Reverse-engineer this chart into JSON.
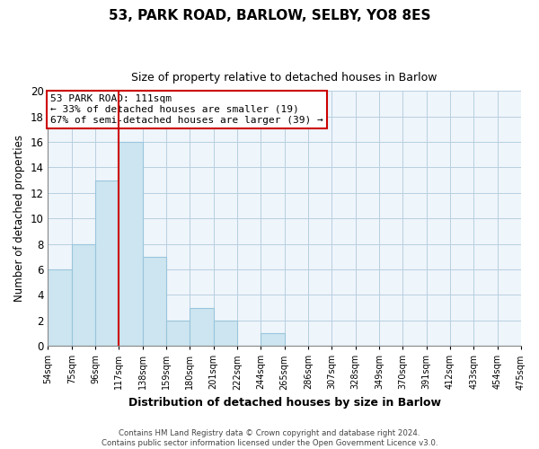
{
  "title": "53, PARK ROAD, BARLOW, SELBY, YO8 8ES",
  "subtitle": "Size of property relative to detached houses in Barlow",
  "xlabel": "Distribution of detached houses by size in Barlow",
  "ylabel": "Number of detached properties",
  "bin_labels": [
    "54sqm",
    "75sqm",
    "96sqm",
    "117sqm",
    "138sqm",
    "159sqm",
    "180sqm",
    "201sqm",
    "222sqm",
    "244sqm",
    "265sqm",
    "286sqm",
    "307sqm",
    "328sqm",
    "349sqm",
    "370sqm",
    "391sqm",
    "412sqm",
    "433sqm",
    "454sqm",
    "475sqm"
  ],
  "bar_values": [
    6,
    8,
    13,
    16,
    7,
    2,
    3,
    2,
    0,
    1,
    0,
    0,
    0,
    0,
    0,
    0,
    0,
    0,
    0,
    0
  ],
  "bar_color": "#cce5f0",
  "bar_edge_color": "#9ac5dc",
  "plot_bg_color": "#eef5fb",
  "grid_color": "#b8cfe0",
  "reference_line_x": 3,
  "reference_line_color": "#cc0000",
  "annotation_title": "53 PARK ROAD: 111sqm",
  "annotation_line1": "← 33% of detached houses are smaller (19)",
  "annotation_line2": "67% of semi-detached houses are larger (39) →",
  "annotation_box_color": "#ffffff",
  "annotation_box_edge": "#cc0000",
  "ylim": [
    0,
    20
  ],
  "yticks": [
    0,
    2,
    4,
    6,
    8,
    10,
    12,
    14,
    16,
    18,
    20
  ],
  "footer_line1": "Contains HM Land Registry data © Crown copyright and database right 2024.",
  "footer_line2": "Contains public sector information licensed under the Open Government Licence v3.0."
}
